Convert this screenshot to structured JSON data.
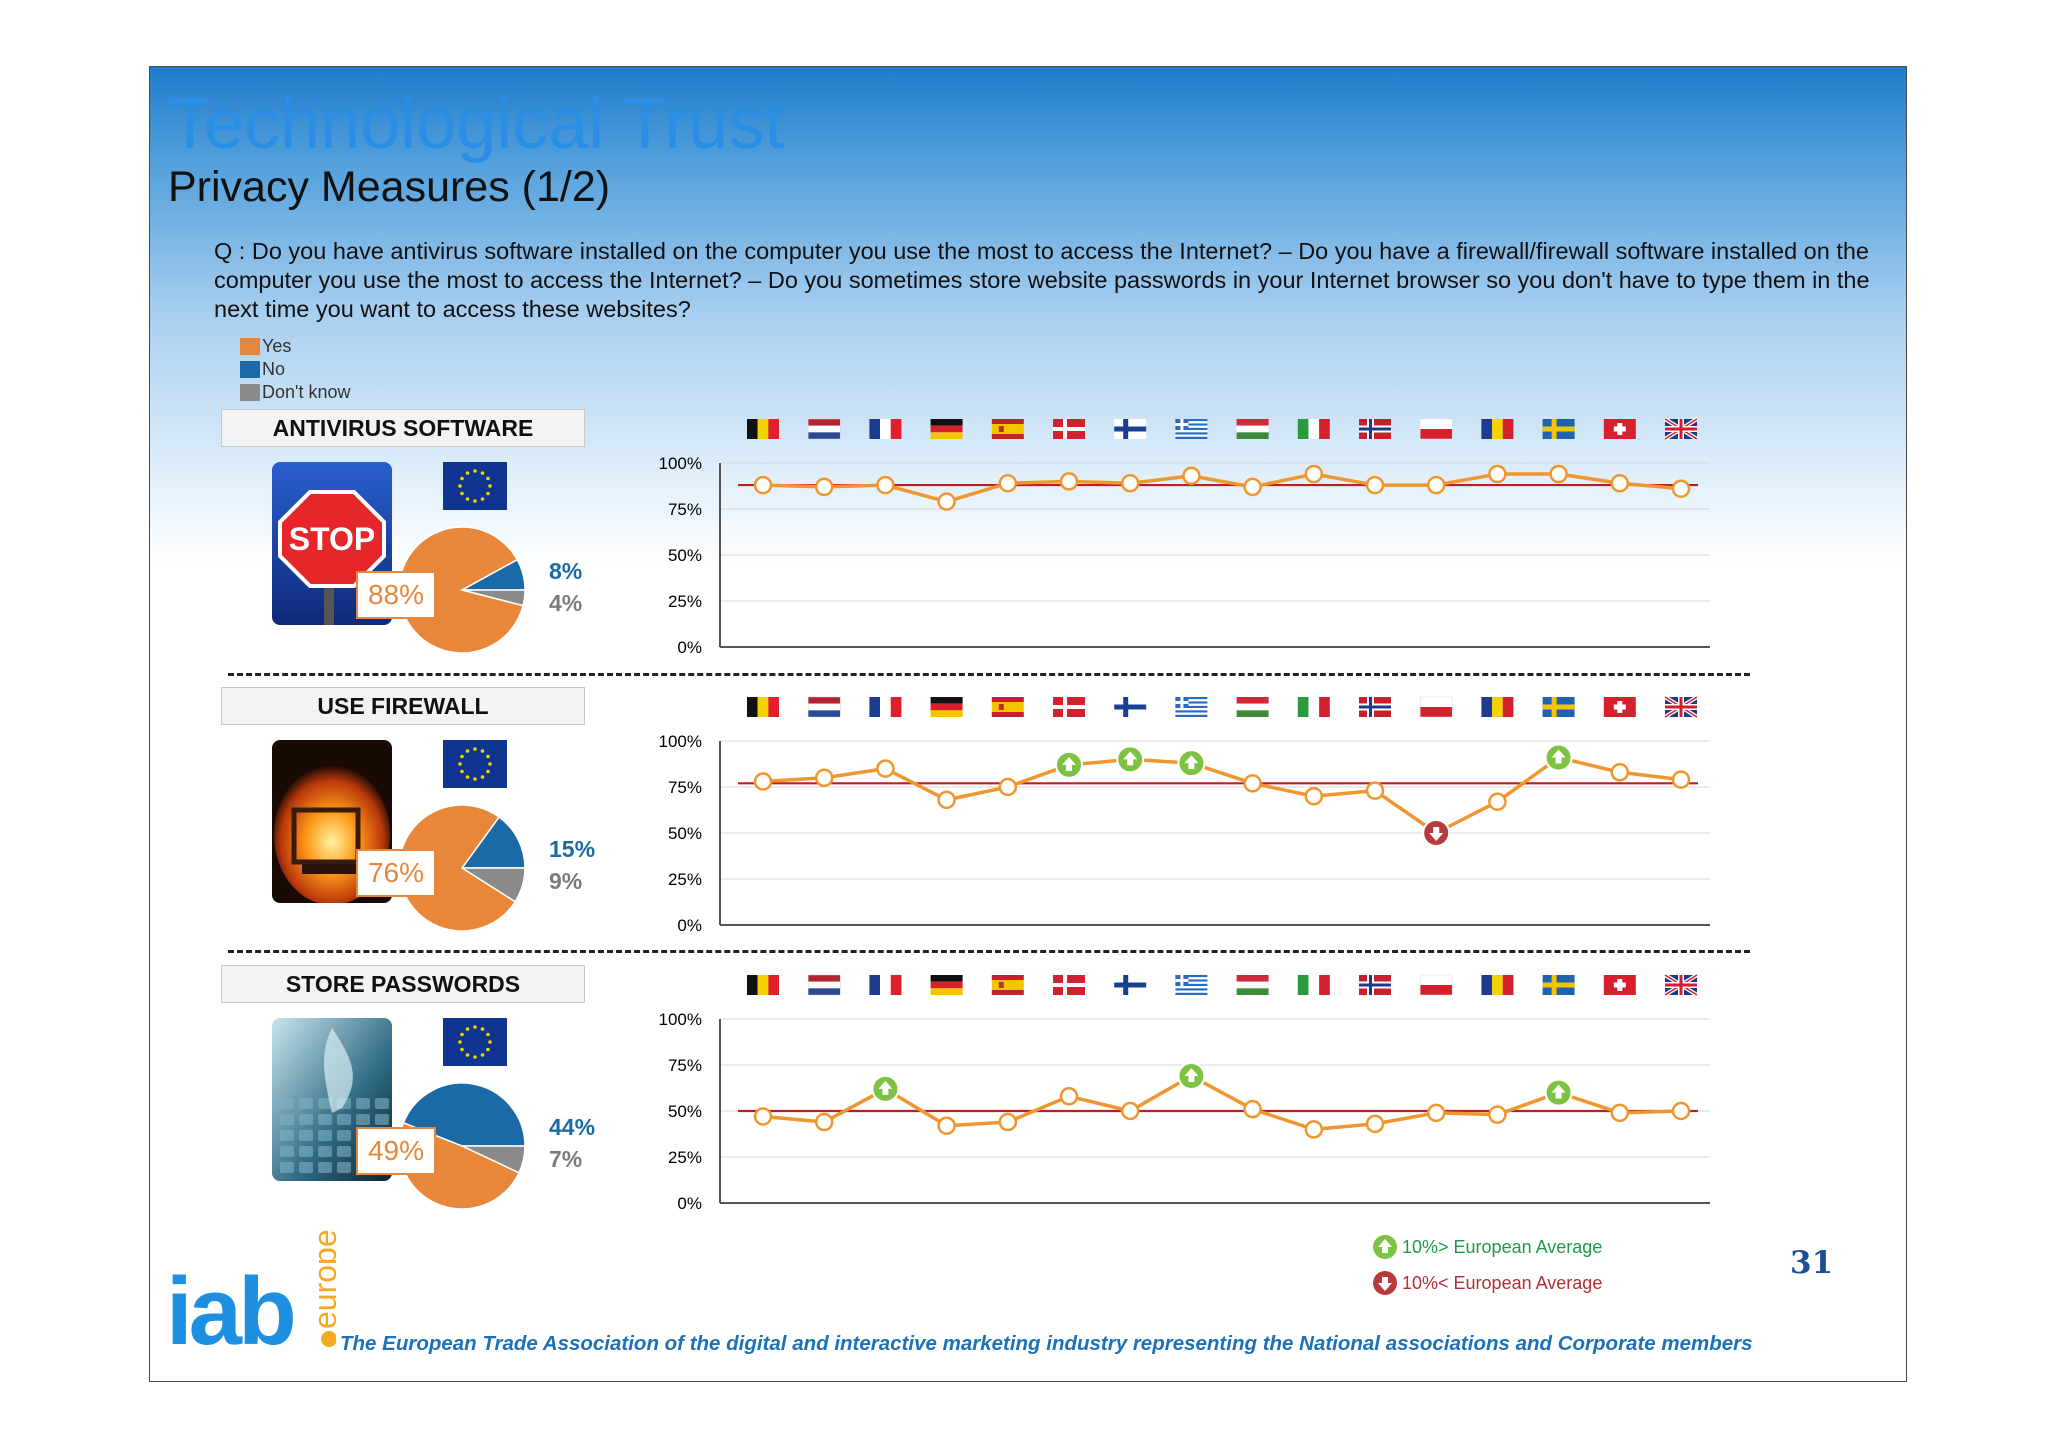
{
  "header": {
    "title": "Technological Trust",
    "subtitle": "Privacy Measures (1/2)",
    "question": "Q : Do you have antivirus software installed on the computer you use the most to access the Internet? – Do you have a firewall/firewall software installed on the computer you use the most to access the Internet? – Do you sometimes store website passwords in your Internet browser so you don't have to type them in the next time you want to access these websites?"
  },
  "legend": [
    {
      "label": "Yes",
      "color": "#e8863a"
    },
    {
      "label": "No",
      "color": "#1c6aa5"
    },
    {
      "label": "Don't know",
      "color": "#8a8a8a"
    }
  ],
  "arrow_legend": {
    "above": "10%> European Average",
    "below": "10%< European Average",
    "above_color": "#1f9a4a",
    "below_color": "#b23030"
  },
  "countries": [
    "Belgium",
    "Netherlands",
    "France",
    "Germany",
    "Spain",
    "Denmark",
    "Finland",
    "Greece",
    "Hungary",
    "Italy",
    "Norway",
    "Poland",
    "Romania",
    "Sweden",
    "Switzerland",
    "United Kingdom"
  ],
  "chart_data": [
    {
      "type": "line",
      "label": "ANTIVIRUS SOFTWARE",
      "pie": {
        "yes": "88%",
        "no": "8%",
        "dont_know": "4%",
        "values": [
          88,
          8,
          4
        ]
      },
      "icon": "stop-sign-photo",
      "ylim": [
        0,
        100
      ],
      "yticks": [
        "100%",
        "75%",
        "50%",
        "25%",
        "0%"
      ],
      "eu_average": 88,
      "values": [
        88,
        87,
        88,
        79,
        89,
        90,
        89,
        93,
        87,
        94,
        88,
        88,
        94,
        94,
        89,
        86
      ],
      "markers": [
        "none",
        "none",
        "none",
        "none",
        "none",
        "none",
        "none",
        "none",
        "none",
        "none",
        "none",
        "none",
        "none",
        "none",
        "none",
        "none"
      ]
    },
    {
      "type": "line",
      "label": "USE FIREWALL",
      "pie": {
        "yes": "76%",
        "no": "15%",
        "dont_know": "9%",
        "values": [
          76,
          15,
          9
        ]
      },
      "icon": "fire-photo",
      "ylim": [
        0,
        100
      ],
      "yticks": [
        "100%",
        "75%",
        "50%",
        "25%",
        "0%"
      ],
      "eu_average": 77,
      "values": [
        78,
        80,
        85,
        68,
        75,
        87,
        90,
        88,
        77,
        70,
        73,
        50,
        67,
        91,
        83,
        79
      ],
      "markers": [
        "none",
        "none",
        "none",
        "none",
        "none",
        "up",
        "up",
        "up",
        "none",
        "none",
        "none",
        "down",
        "none",
        "up",
        "none",
        "none"
      ]
    },
    {
      "type": "line",
      "label": "STORE PASSWORDS",
      "pie": {
        "yes": "49%",
        "no": "44%",
        "dont_know": "7%",
        "values": [
          49,
          44,
          7
        ]
      },
      "icon": "keyboard-photo",
      "ylim": [
        0,
        100
      ],
      "yticks": [
        "100%",
        "75%",
        "50%",
        "25%",
        "0%"
      ],
      "eu_average": 50,
      "values": [
        47,
        44,
        62,
        42,
        44,
        58,
        50,
        69,
        51,
        40,
        43,
        49,
        48,
        60,
        49,
        50
      ],
      "markers": [
        "none",
        "none",
        "up",
        "none",
        "none",
        "none",
        "none",
        "up",
        "none",
        "none",
        "none",
        "none",
        "none",
        "up",
        "none",
        "none"
      ]
    }
  ],
  "footer": {
    "logo_text": "iab",
    "logo_sub": "europe",
    "tagline": "The European Trade Association of the digital and interactive marketing industry representing the National associations and Corporate members",
    "page_number": "31"
  }
}
